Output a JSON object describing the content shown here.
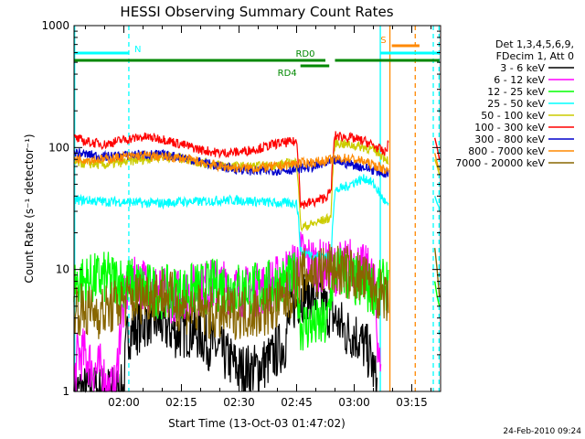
{
  "chart_data": {
    "type": "line",
    "title": "HESSI Observing Summary Count Rates",
    "xlabel": "Start Time (13-Oct-03 01:47:02)",
    "ylabel": "Count Rate (s⁻¹ detector⁻¹)",
    "ylog": true,
    "xlim_minutes": [
      107.03,
      202.5
    ],
    "ylim": [
      1,
      1000
    ],
    "x_ticks": [
      {
        "minute": 120,
        "label": "02:00"
      },
      {
        "minute": 135,
        "label": "02:15"
      },
      {
        "minute": 150,
        "label": "02:30"
      },
      {
        "minute": 165,
        "label": "02:45"
      },
      {
        "minute": 180,
        "label": "03:00"
      },
      {
        "minute": 195,
        "label": "03:15"
      }
    ],
    "y_ticks": [
      {
        "value": 1,
        "label": "1"
      },
      {
        "value": 10,
        "label": "10"
      },
      {
        "value": 100,
        "label": "100"
      },
      {
        "value": 1000,
        "label": "1000"
      }
    ],
    "legend_header": [
      "Det 1,3,4,5,6,9,",
      "FDecim 1, Att 0"
    ],
    "legend_position": "right",
    "series": [
      {
        "name": "3 - 6 keV",
        "color": "#000000",
        "x": [
          107,
          112,
          116,
          118,
          120,
          121,
          123,
          127,
          130,
          134,
          138,
          142,
          146,
          150,
          154,
          158,
          162,
          164,
          166,
          168,
          170,
          172,
          175,
          178,
          180,
          182,
          184,
          186
        ],
        "y": [
          1,
          1,
          1,
          1,
          1,
          3,
          3.2,
          4,
          3.5,
          3,
          3.2,
          2.5,
          2,
          1.5,
          1.5,
          1.8,
          2.5,
          5,
          6,
          6.5,
          6,
          5,
          4,
          3,
          3,
          2.5,
          2,
          1
        ]
      },
      {
        "name": "6 - 12 keV",
        "color": "#ff00ff",
        "x": [
          107,
          108,
          110,
          112,
          114,
          116,
          118,
          121,
          124,
          128,
          132,
          136,
          140,
          144,
          148,
          152,
          156,
          160,
          162,
          164,
          166,
          168,
          170,
          172,
          175,
          178,
          180,
          182,
          184,
          185,
          186,
          187
        ],
        "y": [
          1,
          2,
          2,
          1.5,
          1.5,
          1,
          1,
          7,
          8,
          7,
          6,
          6.5,
          7,
          7.5,
          7,
          6.5,
          7,
          8,
          9,
          10,
          13,
          12,
          11,
          10.5,
          10,
          11,
          11.5,
          10,
          9,
          8,
          3,
          1
        ]
      },
      {
        "name": "12 - 25 keV",
        "color": "#00ff00",
        "x": [
          107,
          110,
          115,
          120,
          125,
          130,
          135,
          140,
          145,
          150,
          155,
          160,
          163,
          165,
          166,
          170,
          173,
          175,
          178,
          180,
          183,
          186,
          188,
          189
        ],
        "y": [
          8,
          8,
          8.5,
          8,
          7,
          6.5,
          6.5,
          7,
          7.5,
          7,
          7,
          7.5,
          8,
          8.5,
          3.5,
          3.5,
          3.5,
          10,
          9,
          8,
          7,
          7,
          7.5,
          8
        ]
      },
      {
        "name": "25 - 50 keV",
        "color": "#00ffff",
        "x": [
          107,
          110,
          115,
          120,
          125,
          130,
          135,
          140,
          145,
          150,
          155,
          160,
          164,
          165,
          166,
          170,
          173,
          174,
          175,
          178,
          180,
          183,
          185,
          187,
          189
        ],
        "y": [
          37,
          37,
          36,
          36,
          35,
          35,
          36,
          36,
          37,
          37,
          36,
          35,
          35,
          36,
          14,
          13,
          13,
          12,
          44,
          48,
          52,
          56,
          50,
          40,
          32
        ]
      },
      {
        "name": "50 - 100 keV",
        "color": "#cccc00",
        "x": [
          107,
          110,
          115,
          120,
          125,
          130,
          135,
          140,
          145,
          150,
          155,
          160,
          165,
          166,
          170,
          173,
          174,
          175,
          178,
          180,
          183,
          186,
          189
        ],
        "y": [
          75,
          74,
          72,
          76,
          80,
          84,
          82,
          75,
          72,
          70,
          70,
          72,
          76,
          22,
          24,
          26,
          27,
          110,
          106,
          104,
          100,
          92,
          78
        ]
      },
      {
        "name": "100 - 300 keV",
        "color": "#ff0000",
        "x": [
          107,
          110,
          115,
          120,
          125,
          130,
          135,
          140,
          145,
          150,
          155,
          160,
          165,
          166,
          170,
          173,
          174,
          175,
          178,
          180,
          183,
          186,
          188,
          189
        ],
        "y": [
          120,
          112,
          106,
          116,
          122,
          118,
          106,
          96,
          90,
          92,
          98,
          108,
          112,
          34,
          36,
          40,
          44,
          125,
          122,
          118,
          112,
          100,
          90,
          110
        ]
      },
      {
        "name": "300 - 800 keV",
        "color": "#0000cc",
        "x": [
          107,
          110,
          115,
          120,
          125,
          130,
          135,
          140,
          145,
          150,
          155,
          160,
          165,
          166,
          170,
          173,
          174,
          175,
          178,
          180,
          183,
          186,
          189
        ],
        "y": [
          92,
          88,
          84,
          86,
          88,
          87,
          84,
          76,
          70,
          66,
          64,
          65,
          66,
          68,
          70,
          74,
          76,
          78,
          74,
          72,
          68,
          64,
          60
        ]
      },
      {
        "name": "800 - 7000 keV",
        "color": "#ff8800",
        "x": [
          107,
          110,
          115,
          120,
          125,
          130,
          135,
          140,
          145,
          150,
          155,
          160,
          165,
          170,
          175,
          178,
          180,
          183,
          186,
          189
        ],
        "y": [
          82,
          80,
          80,
          84,
          86,
          84,
          82,
          76,
          70,
          68,
          68,
          70,
          74,
          76,
          80,
          82,
          80,
          76,
          70,
          64
        ]
      },
      {
        "name": "7000 - 20000 keV",
        "color": "#886600",
        "x": [
          107,
          110,
          115,
          120,
          125,
          130,
          135,
          140,
          145,
          150,
          155,
          160,
          163,
          165,
          168,
          170,
          173,
          175,
          178,
          180,
          183,
          186,
          189
        ],
        "y": [
          5,
          4.5,
          4.5,
          5.5,
          6,
          6.5,
          5,
          4.5,
          4.2,
          4.5,
          4.5,
          5,
          6,
          8,
          9.5,
          9.5,
          10,
          10,
          9.5,
          9,
          8,
          6.5,
          5
        ]
      }
    ],
    "after_gap_series": [
      {
        "color": "#ff0000",
        "x": [
          201,
          201.6,
          202.2
        ],
        "y": [
          120,
          100,
          80
        ]
      },
      {
        "color": "#ff8800",
        "x": [
          201,
          201.6,
          202.2
        ],
        "y": [
          90,
          75,
          65
        ]
      },
      {
        "color": "#cccc00",
        "x": [
          201,
          201.6,
          202.2
        ],
        "y": [
          80,
          70,
          60
        ]
      },
      {
        "color": "#00ffff",
        "x": [
          201,
          201.6,
          202.2
        ],
        "y": [
          40,
          35,
          32
        ]
      },
      {
        "color": "#00ff00",
        "x": [
          201,
          201.6,
          202.2
        ],
        "y": [
          8,
          6,
          5
        ]
      },
      {
        "color": "#886600",
        "x": [
          201,
          201.6,
          202.2
        ],
        "y": [
          15,
          10,
          6
        ]
      }
    ],
    "vertical_markers": [
      {
        "minute": 107.2,
        "color": "#00ffff",
        "dashed": false
      },
      {
        "minute": 121.3,
        "color": "#00ffff",
        "dashed": true
      },
      {
        "minute": 186.8,
        "color": "#00ffff",
        "dashed": false
      },
      {
        "minute": 189.3,
        "color": "#ff8800",
        "dashed": false
      },
      {
        "minute": 195.9,
        "color": "#ff8800",
        "dashed": true
      },
      {
        "minute": 200.6,
        "color": "#00ffff",
        "dashed": true
      },
      {
        "minute": 202.1,
        "color": "#00ffff",
        "dashed": true
      }
    ],
    "bars": [
      {
        "label": "N",
        "color": "#00ffff",
        "x_start": 107,
        "x_end": 121.3,
        "level": 0.925
      },
      {
        "label": "",
        "color": "#00ffff",
        "x_start": 186.8,
        "x_end": 202.2,
        "level": 0.925
      },
      {
        "label": "S",
        "color": "#ff8800",
        "x_start": 189.8,
        "x_end": 197,
        "level": 0.945
      },
      {
        "label": "RD0",
        "color": "#008800",
        "x_start": 107,
        "x_end": 172.5,
        "level": 0.905
      },
      {
        "label": "",
        "color": "#008800",
        "x_start": 175,
        "x_end": 202.2,
        "level": 0.905
      },
      {
        "label": "RD4",
        "color": "#008800",
        "x_start": 166,
        "x_end": 173.5,
        "level": 0.89
      }
    ],
    "gap_minute": 190.5
  },
  "footer": {
    "date": "24-Feb-2010 09:24"
  }
}
